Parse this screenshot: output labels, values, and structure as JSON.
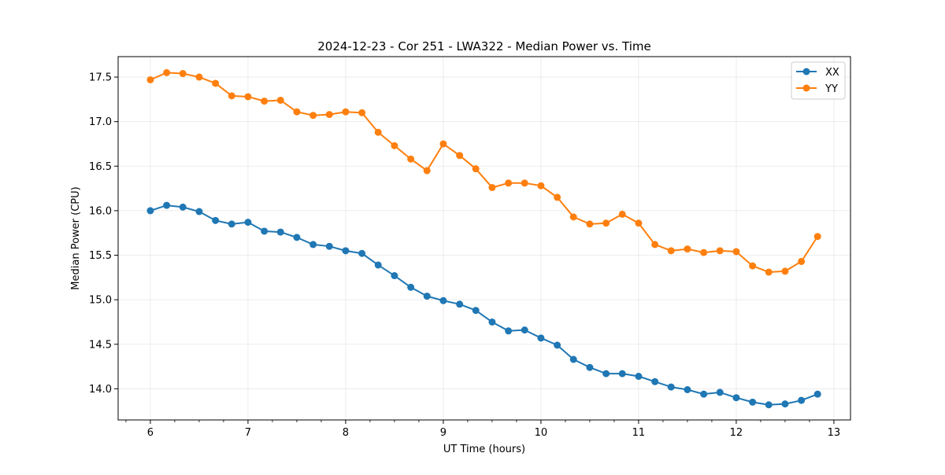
{
  "chart_data": {
    "type": "line",
    "title": "2024-12-23 - Cor 251 - LWA322 - Median Power vs. Time",
    "xlabel": "UT Time (hours)",
    "ylabel": "Median Power (CPU)",
    "xlim": [
      5.67,
      13.17
    ],
    "ylim": [
      13.65,
      17.73
    ],
    "xticks": [
      6,
      7,
      8,
      9,
      10,
      11,
      12,
      13
    ],
    "yticks": [
      14.0,
      14.5,
      15.0,
      15.5,
      16.0,
      16.5,
      17.0,
      17.5
    ],
    "grid": true,
    "legend_position": "top-right",
    "x": [
      6.0,
      6.167,
      6.333,
      6.5,
      6.667,
      6.833,
      7.0,
      7.167,
      7.333,
      7.5,
      7.667,
      7.833,
      8.0,
      8.167,
      8.333,
      8.5,
      8.667,
      8.833,
      9.0,
      9.167,
      9.333,
      9.5,
      9.667,
      9.833,
      10.0,
      10.167,
      10.333,
      10.5,
      10.667,
      10.833,
      11.0,
      11.167,
      11.333,
      11.5,
      11.667,
      11.833,
      12.0,
      12.167,
      12.333,
      12.5,
      12.667,
      12.833
    ],
    "series": [
      {
        "name": "XX",
        "color": "#1f77b4",
        "values": [
          16.0,
          16.06,
          16.04,
          15.99,
          15.89,
          15.85,
          15.87,
          15.77,
          15.76,
          15.7,
          15.62,
          15.6,
          15.55,
          15.52,
          15.39,
          15.27,
          15.14,
          15.04,
          14.99,
          14.95,
          14.88,
          14.75,
          14.65,
          14.66,
          14.57,
          14.49,
          14.33,
          14.24,
          14.17,
          14.17,
          14.14,
          14.08,
          14.02,
          13.99,
          13.94,
          13.96,
          13.9,
          13.85,
          13.82,
          13.83,
          13.87,
          13.94
        ]
      },
      {
        "name": "YY",
        "color": "#ff7f0e",
        "values": [
          17.47,
          17.55,
          17.54,
          17.5,
          17.43,
          17.29,
          17.28,
          17.23,
          17.24,
          17.11,
          17.07,
          17.08,
          17.11,
          17.1,
          16.88,
          16.73,
          16.58,
          16.45,
          16.75,
          16.62,
          16.47,
          16.26,
          16.31,
          16.31,
          16.28,
          16.15,
          15.93,
          15.85,
          15.86,
          15.96,
          15.86,
          15.62,
          15.55,
          15.57,
          15.53,
          15.55,
          15.54,
          15.38,
          15.31,
          15.32,
          15.43,
          15.71
        ]
      }
    ]
  }
}
